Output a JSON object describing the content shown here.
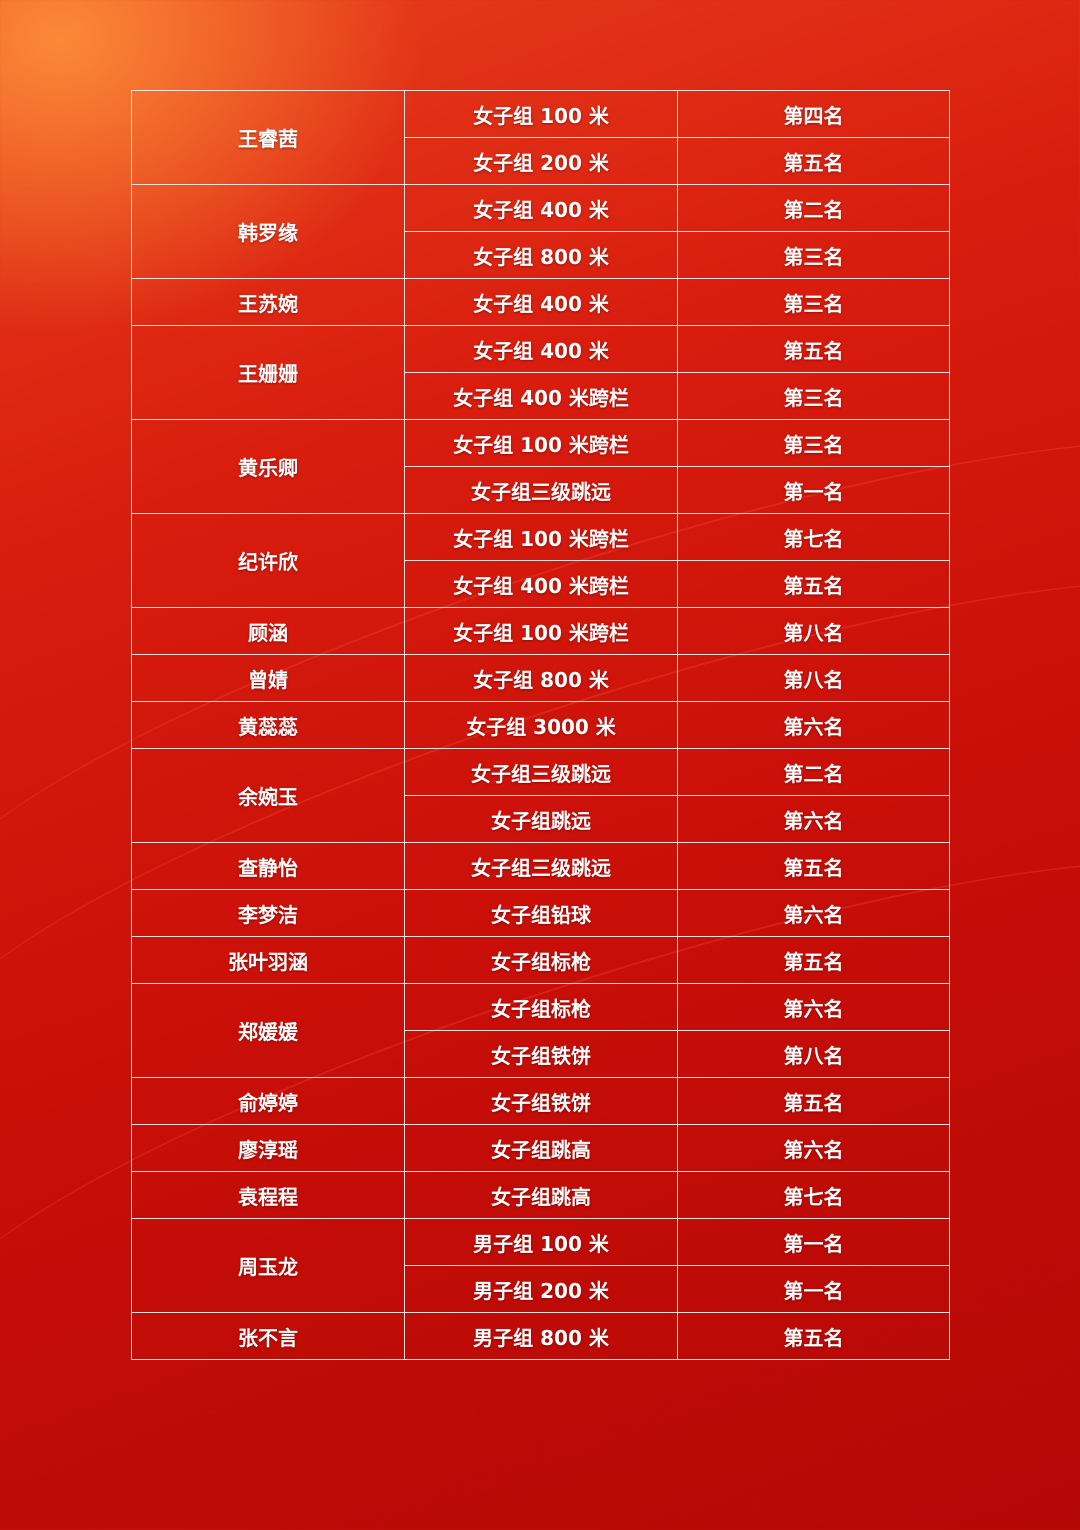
{
  "results": [
    {
      "name": "王睿茜",
      "events": [
        {
          "event": "女子组 100 米",
          "rank": "第四名"
        },
        {
          "event": "女子组 200 米",
          "rank": "第五名"
        }
      ]
    },
    {
      "name": "韩罗缘",
      "events": [
        {
          "event": "女子组 400 米",
          "rank": "第二名"
        },
        {
          "event": "女子组 800 米",
          "rank": "第三名"
        }
      ]
    },
    {
      "name": "王苏婉",
      "events": [
        {
          "event": "女子组 400 米",
          "rank": "第三名"
        }
      ]
    },
    {
      "name": "王姗姗",
      "events": [
        {
          "event": "女子组 400 米",
          "rank": "第五名"
        },
        {
          "event": "女子组 400 米跨栏",
          "rank": "第三名"
        }
      ]
    },
    {
      "name": "黄乐卿",
      "events": [
        {
          "event": "女子组 100 米跨栏",
          "rank": "第三名"
        },
        {
          "event": "女子组三级跳远",
          "rank": "第一名"
        }
      ]
    },
    {
      "name": "纪许欣",
      "events": [
        {
          "event": "女子组 100 米跨栏",
          "rank": "第七名"
        },
        {
          "event": "女子组 400 米跨栏",
          "rank": "第五名"
        }
      ]
    },
    {
      "name": "顾涵",
      "events": [
        {
          "event": "女子组 100 米跨栏",
          "rank": "第八名"
        }
      ]
    },
    {
      "name": "曾婧",
      "events": [
        {
          "event": "女子组 800 米",
          "rank": "第八名"
        }
      ]
    },
    {
      "name": "黄蕊蕊",
      "events": [
        {
          "event": "女子组 3000 米",
          "rank": "第六名"
        }
      ]
    },
    {
      "name": "余婉玉",
      "events": [
        {
          "event": "女子组三级跳远",
          "rank": "第二名"
        },
        {
          "event": "女子组跳远",
          "rank": "第六名"
        }
      ]
    },
    {
      "name": "查静怡",
      "events": [
        {
          "event": "女子组三级跳远",
          "rank": "第五名"
        }
      ]
    },
    {
      "name": "李梦洁",
      "events": [
        {
          "event": "女子组铅球",
          "rank": "第六名"
        }
      ]
    },
    {
      "name": "张叶羽涵",
      "events": [
        {
          "event": "女子组标枪",
          "rank": "第五名"
        }
      ]
    },
    {
      "name": "郑媛媛",
      "events": [
        {
          "event": "女子组标枪",
          "rank": "第六名"
        },
        {
          "event": "女子组铁饼",
          "rank": "第八名"
        }
      ]
    },
    {
      "name": "俞婷婷",
      "events": [
        {
          "event": "女子组铁饼",
          "rank": "第五名"
        }
      ]
    },
    {
      "name": "廖淳瑶",
      "events": [
        {
          "event": "女子组跳高",
          "rank": "第六名"
        }
      ]
    },
    {
      "name": "袁程程",
      "events": [
        {
          "event": "女子组跳高",
          "rank": "第七名"
        }
      ]
    },
    {
      "name": "周玉龙",
      "events": [
        {
          "event": "男子组 100 米",
          "rank": "第一名"
        },
        {
          "event": "男子组 200 米",
          "rank": "第一名"
        }
      ]
    },
    {
      "name": "张不言",
      "events": [
        {
          "event": "男子组 800 米",
          "rank": "第五名"
        }
      ]
    }
  ]
}
